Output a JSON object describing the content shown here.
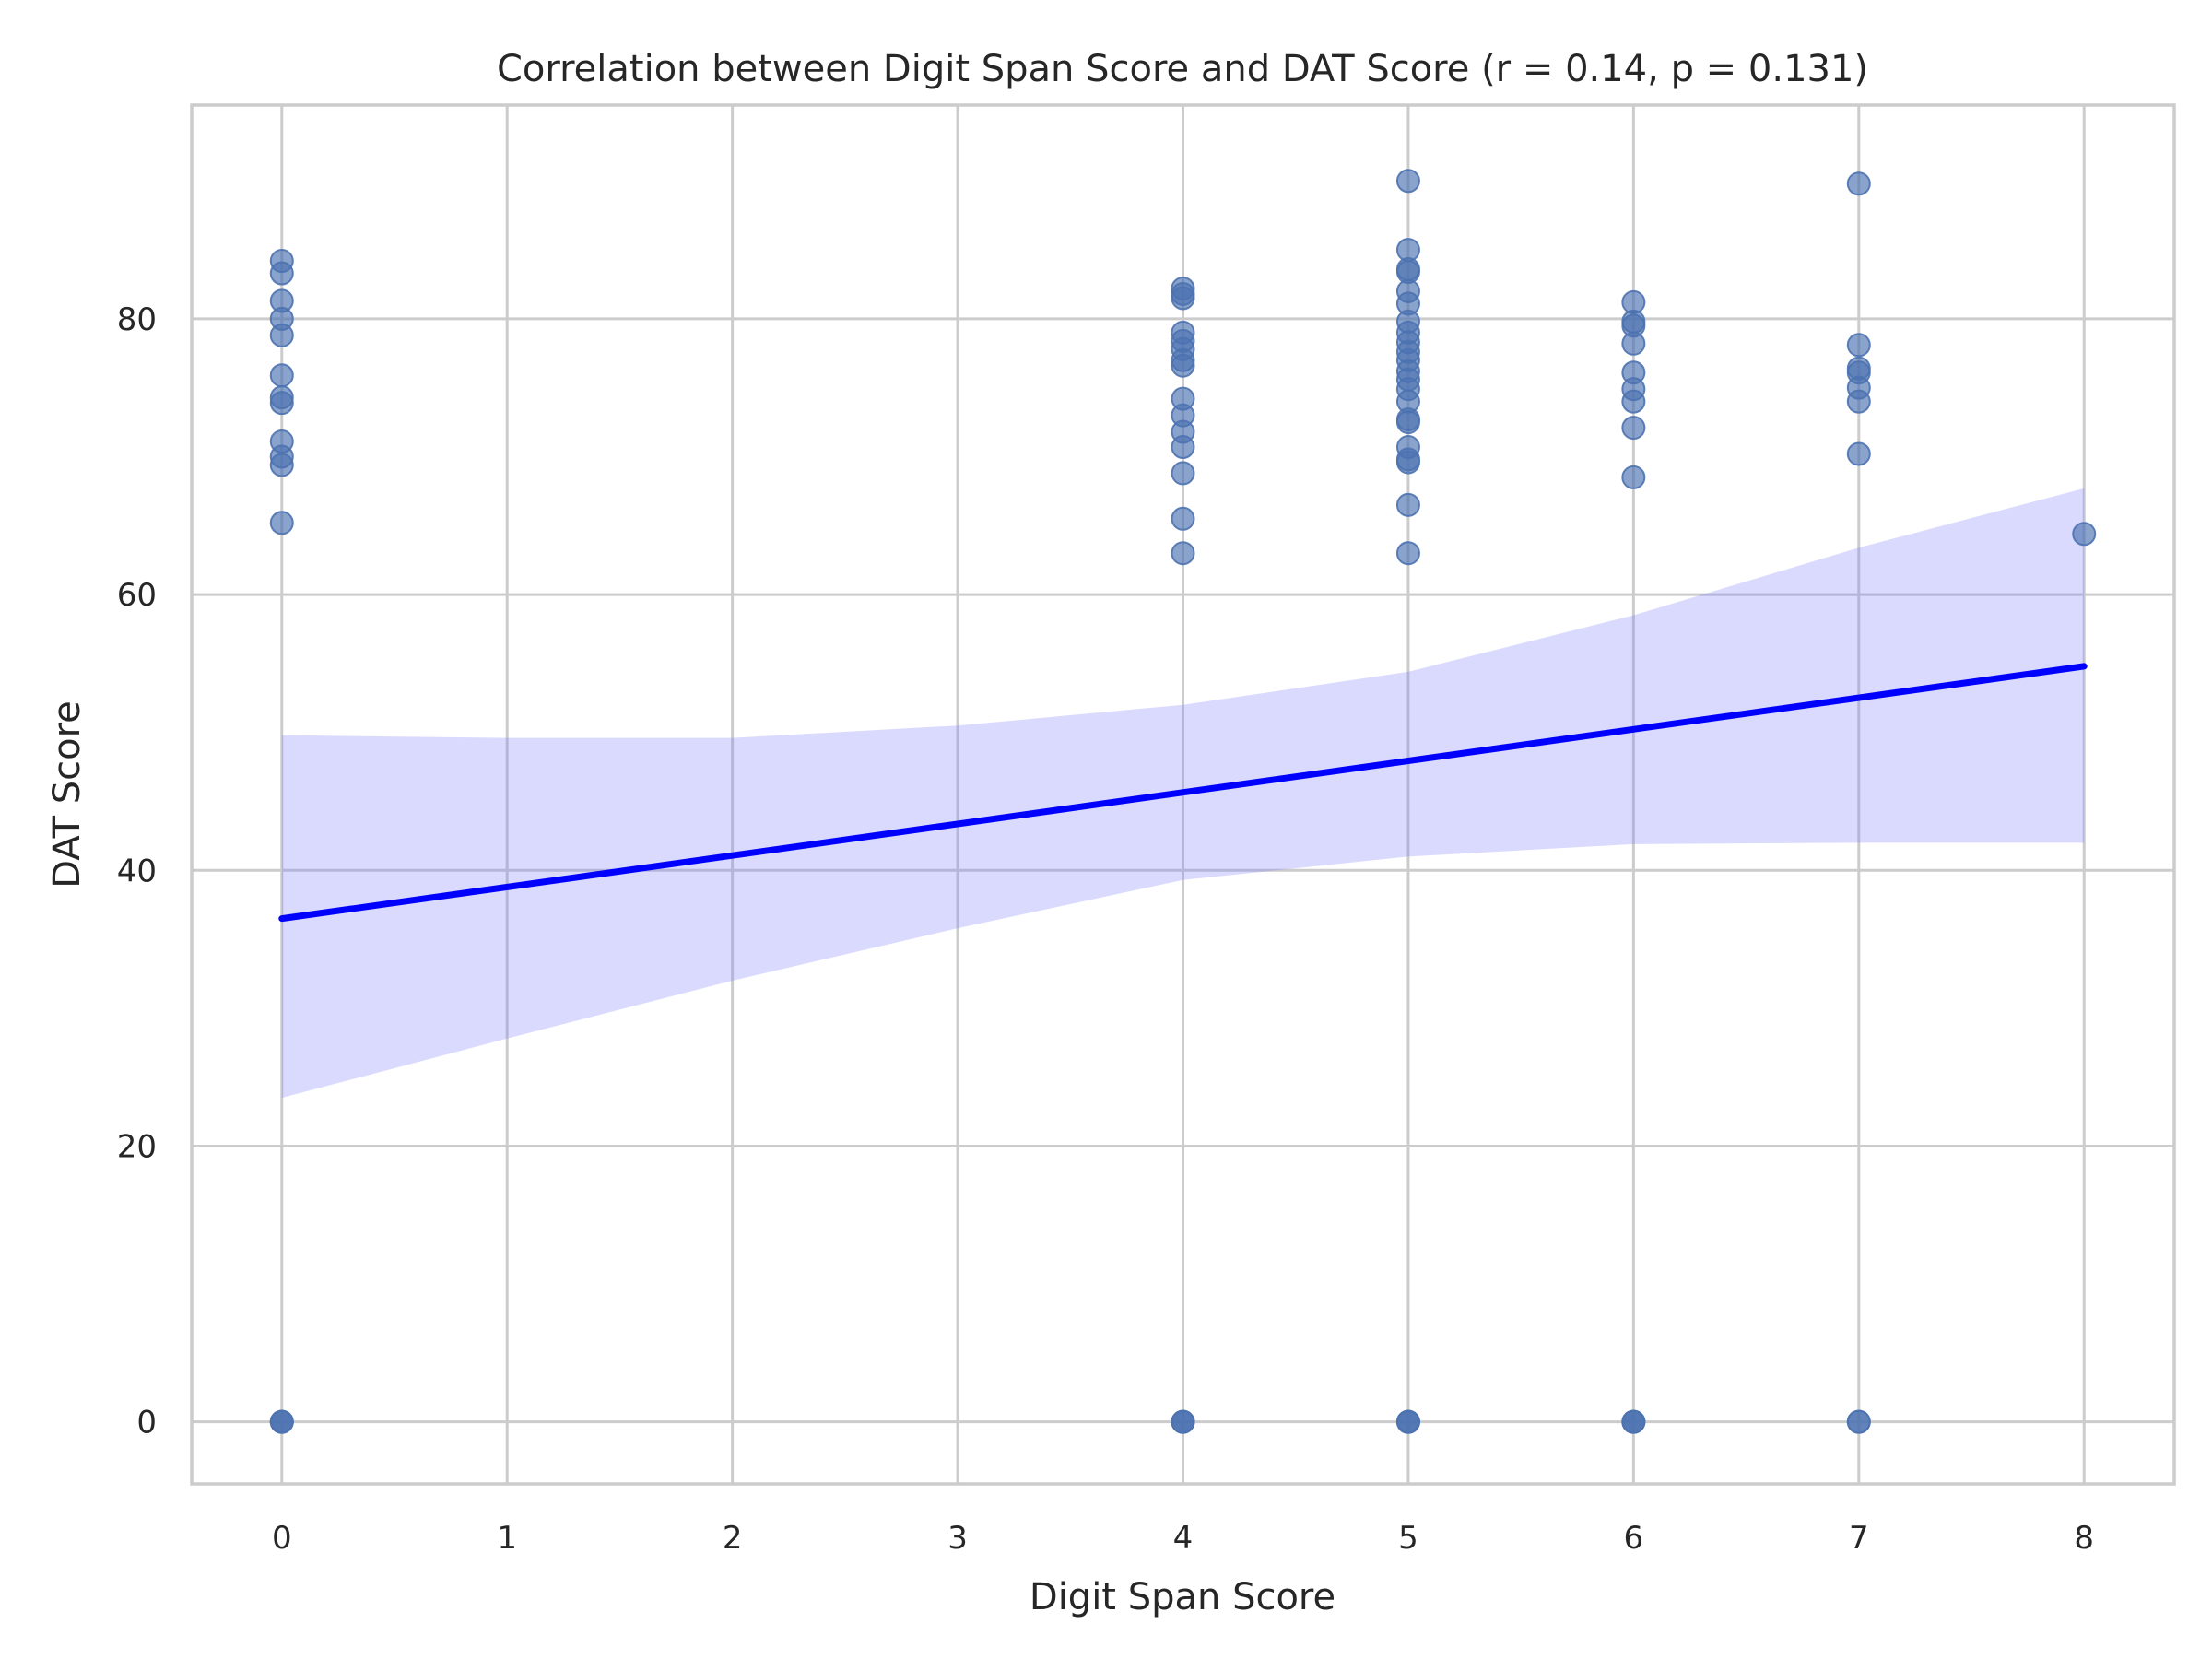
{
  "chart_data": {
    "type": "scatter",
    "title": "Correlation between Digit Span Score and DAT Score (r = 0.14, p = 0.131)",
    "xlabel": "Digit Span Score",
    "ylabel": "DAT Score",
    "xlim": [
      -0.4,
      8.4
    ],
    "ylim": [
      -4.5,
      95.5
    ],
    "xticks": [
      0,
      1,
      2,
      3,
      4,
      5,
      6,
      7,
      8
    ],
    "yticks": [
      0,
      20,
      40,
      60,
      80
    ],
    "grid": true,
    "colors": {
      "points": "#4c72b0",
      "regression_line": "#0000ff",
      "confidence_band": "#7b7bff"
    },
    "points": [
      {
        "x": 0,
        "y": 84.2
      },
      {
        "x": 0,
        "y": 83.3
      },
      {
        "x": 0,
        "y": 81.3
      },
      {
        "x": 0,
        "y": 80.0
      },
      {
        "x": 0,
        "y": 78.8
      },
      {
        "x": 0,
        "y": 75.9
      },
      {
        "x": 0,
        "y": 74.3
      },
      {
        "x": 0,
        "y": 73.9
      },
      {
        "x": 0,
        "y": 71.1
      },
      {
        "x": 0,
        "y": 70.0
      },
      {
        "x": 0,
        "y": 69.4
      },
      {
        "x": 0,
        "y": 65.2
      },
      {
        "x": 0,
        "y": 0
      },
      {
        "x": 0,
        "y": 0
      },
      {
        "x": 0,
        "y": 0
      },
      {
        "x": 4,
        "y": 82.2
      },
      {
        "x": 4,
        "y": 81.8
      },
      {
        "x": 4,
        "y": 81.5
      },
      {
        "x": 4,
        "y": 79.0
      },
      {
        "x": 4,
        "y": 78.4
      },
      {
        "x": 4,
        "y": 77.8
      },
      {
        "x": 4,
        "y": 77.0
      },
      {
        "x": 4,
        "y": 76.6
      },
      {
        "x": 4,
        "y": 74.2
      },
      {
        "x": 4,
        "y": 73.0
      },
      {
        "x": 4,
        "y": 71.8
      },
      {
        "x": 4,
        "y": 70.7
      },
      {
        "x": 4,
        "y": 68.8
      },
      {
        "x": 4,
        "y": 65.5
      },
      {
        "x": 4,
        "y": 63.0
      },
      {
        "x": 4,
        "y": 0
      },
      {
        "x": 4,
        "y": 0
      },
      {
        "x": 4,
        "y": 0
      },
      {
        "x": 5,
        "y": 90.0
      },
      {
        "x": 5,
        "y": 85.0
      },
      {
        "x": 5,
        "y": 83.6
      },
      {
        "x": 5,
        "y": 83.4
      },
      {
        "x": 5,
        "y": 82.0
      },
      {
        "x": 5,
        "y": 81.1
      },
      {
        "x": 5,
        "y": 79.8
      },
      {
        "x": 5,
        "y": 79.0
      },
      {
        "x": 5,
        "y": 78.3
      },
      {
        "x": 5,
        "y": 77.6
      },
      {
        "x": 5,
        "y": 77.0
      },
      {
        "x": 5,
        "y": 76.2
      },
      {
        "x": 5,
        "y": 75.6
      },
      {
        "x": 5,
        "y": 74.9
      },
      {
        "x": 5,
        "y": 74.0
      },
      {
        "x": 5,
        "y": 72.7
      },
      {
        "x": 5,
        "y": 72.5
      },
      {
        "x": 5,
        "y": 70.7
      },
      {
        "x": 5,
        "y": 69.8
      },
      {
        "x": 5,
        "y": 69.6
      },
      {
        "x": 5,
        "y": 66.5
      },
      {
        "x": 5,
        "y": 63.0
      },
      {
        "x": 5,
        "y": 0
      },
      {
        "x": 5,
        "y": 0
      },
      {
        "x": 5,
        "y": 0
      },
      {
        "x": 6,
        "y": 81.2
      },
      {
        "x": 6,
        "y": 79.8
      },
      {
        "x": 6,
        "y": 79.5
      },
      {
        "x": 6,
        "y": 78.2
      },
      {
        "x": 6,
        "y": 76.1
      },
      {
        "x": 6,
        "y": 74.9
      },
      {
        "x": 6,
        "y": 74.0
      },
      {
        "x": 6,
        "y": 72.1
      },
      {
        "x": 6,
        "y": 68.5
      },
      {
        "x": 6,
        "y": 0
      },
      {
        "x": 6,
        "y": 0
      },
      {
        "x": 6,
        "y": 0
      },
      {
        "x": 7,
        "y": 89.8
      },
      {
        "x": 7,
        "y": 78.1
      },
      {
        "x": 7,
        "y": 76.4
      },
      {
        "x": 7,
        "y": 76.1
      },
      {
        "x": 7,
        "y": 75.0
      },
      {
        "x": 7,
        "y": 74.0
      },
      {
        "x": 7,
        "y": 70.2
      },
      {
        "x": 7,
        "y": 0
      },
      {
        "x": 7,
        "y": 0
      },
      {
        "x": 8,
        "y": 64.4
      }
    ],
    "regression": {
      "x": [
        0,
        8
      ],
      "y": [
        36.5,
        54.8
      ]
    },
    "confidence_band": {
      "x": [
        0,
        1,
        2,
        3,
        4,
        5,
        6,
        7,
        8
      ],
      "lower": [
        23.5,
        27.8,
        32.0,
        35.8,
        39.3,
        41.0,
        41.9,
        42.0,
        42.0
      ],
      "upper": [
        49.8,
        49.6,
        49.6,
        50.5,
        52.0,
        54.4,
        58.5,
        63.4,
        67.7
      ]
    }
  }
}
